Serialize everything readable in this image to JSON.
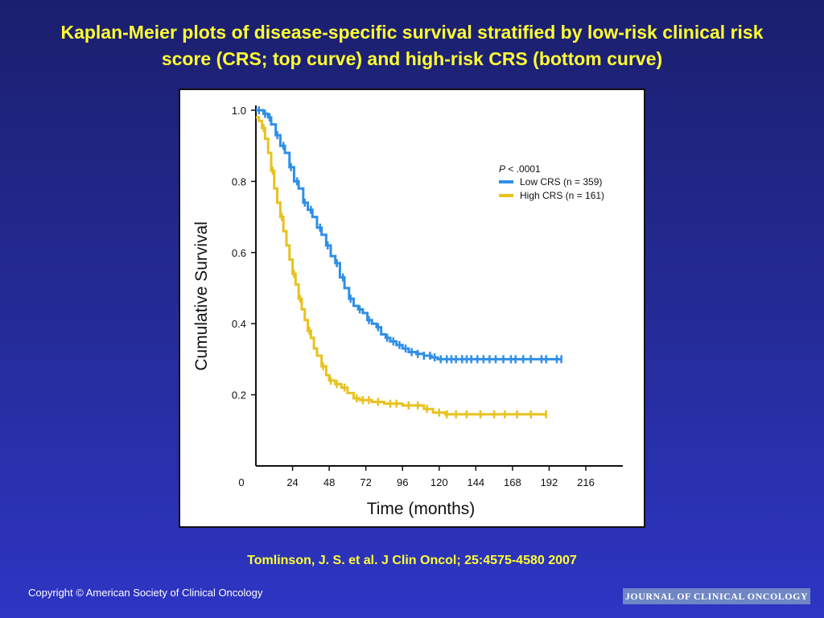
{
  "slide": {
    "title_line1": "Kaplan-Meier plots of disease-specific survival stratified by low-risk clinical risk",
    "title_line2": "score (CRS; top curve) and high-risk CRS (bottom curve)",
    "citation": "Tomlinson, J. S. et al. J Clin Oncol; 25:4575-4580 2007",
    "copyright": "Copyright © American Society of Clinical Oncology",
    "journal_logo": "JOURNAL OF CLINICAL ONCOLOGY"
  },
  "colors": {
    "title": "#ffff33",
    "low_crs": "#2f8fe8",
    "high_crs": "#e8c21e",
    "background": "#252c9a"
  },
  "chart_data": {
    "type": "line",
    "title": "",
    "xlabel": "Time (months)",
    "ylabel": "Cumulative Survival",
    "xlim": [
      0,
      216
    ],
    "ylim": [
      0,
      1.0
    ],
    "x_ticks": [
      0,
      24,
      48,
      72,
      96,
      120,
      144,
      168,
      192,
      216
    ],
    "y_ticks": [
      0.2,
      0.4,
      0.6,
      0.8,
      1.0
    ],
    "y_tick_labels": [
      "0.2",
      "0.4",
      "0.6",
      "0.8",
      "1.0"
    ],
    "annotation": "P < .0001",
    "legend_position": "top-right",
    "series": [
      {
        "name": "Low CRS (n = 359)",
        "color": "#2f8fe8",
        "points": [
          [
            0,
            1.0
          ],
          [
            3,
            1.0
          ],
          [
            5,
            0.99
          ],
          [
            8,
            0.98
          ],
          [
            10,
            0.96
          ],
          [
            13,
            0.93
          ],
          [
            16,
            0.9
          ],
          [
            19,
            0.88
          ],
          [
            22,
            0.84
          ],
          [
            25,
            0.8
          ],
          [
            28,
            0.78
          ],
          [
            31,
            0.74
          ],
          [
            34,
            0.72
          ],
          [
            37,
            0.7
          ],
          [
            40,
            0.67
          ],
          [
            43,
            0.65
          ],
          [
            46,
            0.62
          ],
          [
            49,
            0.59
          ],
          [
            52,
            0.57
          ],
          [
            55,
            0.53
          ],
          [
            58,
            0.5
          ],
          [
            61,
            0.47
          ],
          [
            64,
            0.45
          ],
          [
            67,
            0.44
          ],
          [
            70,
            0.43
          ],
          [
            73,
            0.41
          ],
          [
            76,
            0.4
          ],
          [
            79,
            0.39
          ],
          [
            82,
            0.37
          ],
          [
            85,
            0.36
          ],
          [
            88,
            0.35
          ],
          [
            92,
            0.34
          ],
          [
            96,
            0.33
          ],
          [
            100,
            0.32
          ],
          [
            105,
            0.315
          ],
          [
            110,
            0.31
          ],
          [
            115,
            0.305
          ],
          [
            119,
            0.3
          ],
          [
            200,
            0.3
          ]
        ],
        "censored_x": [
          2,
          6,
          9,
          14,
          18,
          23,
          27,
          32,
          36,
          42,
          47,
          53,
          57,
          62,
          68,
          74,
          80,
          86,
          90,
          94,
          98,
          102,
          106,
          110,
          114,
          117,
          121,
          125,
          128,
          131,
          135,
          138,
          141,
          145,
          149,
          153,
          157,
          162,
          167,
          170,
          175,
          180,
          187,
          190,
          197,
          200
        ]
      },
      {
        "name": "High CRS (n = 161)",
        "color": "#e8c21e",
        "points": [
          [
            0,
            0.98
          ],
          [
            2,
            0.97
          ],
          [
            4,
            0.95
          ],
          [
            6,
            0.92
          ],
          [
            8,
            0.88
          ],
          [
            10,
            0.83
          ],
          [
            12,
            0.78
          ],
          [
            14,
            0.74
          ],
          [
            16,
            0.7
          ],
          [
            18,
            0.66
          ],
          [
            20,
            0.62
          ],
          [
            22,
            0.58
          ],
          [
            24,
            0.54
          ],
          [
            26,
            0.51
          ],
          [
            28,
            0.47
          ],
          [
            30,
            0.44
          ],
          [
            32,
            0.41
          ],
          [
            34,
            0.38
          ],
          [
            36,
            0.36
          ],
          [
            38,
            0.33
          ],
          [
            40,
            0.31
          ],
          [
            43,
            0.28
          ],
          [
            46,
            0.255
          ],
          [
            48,
            0.24
          ],
          [
            52,
            0.23
          ],
          [
            56,
            0.22
          ],
          [
            60,
            0.205
          ],
          [
            64,
            0.19
          ],
          [
            68,
            0.185
          ],
          [
            76,
            0.18
          ],
          [
            84,
            0.175
          ],
          [
            96,
            0.17
          ],
          [
            110,
            0.16
          ],
          [
            116,
            0.15
          ],
          [
            124,
            0.145
          ],
          [
            140,
            0.145
          ],
          [
            190,
            0.145
          ]
        ],
        "censored_x": [
          5,
          11,
          17,
          25,
          29,
          35,
          44,
          49,
          53,
          58,
          66,
          70,
          74,
          80,
          88,
          92,
          100,
          106,
          112,
          120,
          125,
          131,
          138,
          147,
          156,
          163,
          171,
          180,
          190
        ]
      }
    ]
  }
}
